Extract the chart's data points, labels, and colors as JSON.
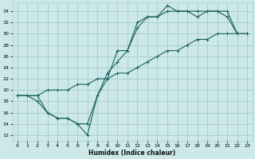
{
  "xlabel": "Humidex (Indice chaleur)",
  "xlim": [
    -0.5,
    23.5
  ],
  "ylim": [
    11,
    35.5
  ],
  "yticks": [
    12,
    14,
    16,
    18,
    20,
    22,
    24,
    26,
    28,
    30,
    32,
    34
  ],
  "xticks": [
    0,
    1,
    2,
    3,
    4,
    5,
    6,
    7,
    8,
    9,
    10,
    11,
    12,
    13,
    14,
    15,
    16,
    17,
    18,
    19,
    20,
    21,
    22,
    23
  ],
  "bg_color": "#cce8e8",
  "grid_color": "#a8cccc",
  "line_color": "#1a6060",
  "line1_x": [
    0,
    1,
    2,
    3,
    4,
    5,
    6,
    7,
    8,
    9,
    10,
    11,
    12,
    13,
    14,
    15,
    16,
    17,
    18,
    19,
    20,
    21,
    22,
    23
  ],
  "line1_y": [
    19,
    19,
    19,
    16,
    15,
    15,
    14,
    12,
    19,
    22,
    27,
    27,
    32,
    33,
    33,
    35,
    34,
    34,
    34,
    34,
    34,
    34,
    30,
    30
  ],
  "line2_x": [
    0,
    1,
    2,
    3,
    4,
    5,
    6,
    7,
    8,
    9,
    10,
    11,
    12,
    13,
    14,
    15,
    16,
    17,
    18,
    19,
    20,
    21,
    22,
    23
  ],
  "line2_y": [
    19,
    19,
    18,
    16,
    15,
    15,
    14,
    14,
    19,
    23,
    25,
    27,
    31,
    33,
    33,
    34,
    34,
    34,
    33,
    34,
    34,
    33,
    30,
    30
  ],
  "line3_x": [
    0,
    1,
    2,
    3,
    4,
    5,
    6,
    7,
    8,
    9,
    10,
    11,
    12,
    13,
    14,
    15,
    16,
    17,
    18,
    19,
    20,
    21,
    22,
    23
  ],
  "line3_y": [
    19,
    19,
    19,
    20,
    20,
    20,
    21,
    21,
    22,
    22,
    23,
    23,
    24,
    25,
    26,
    27,
    27,
    28,
    29,
    29,
    30,
    30,
    30,
    30
  ],
  "marker": "+"
}
